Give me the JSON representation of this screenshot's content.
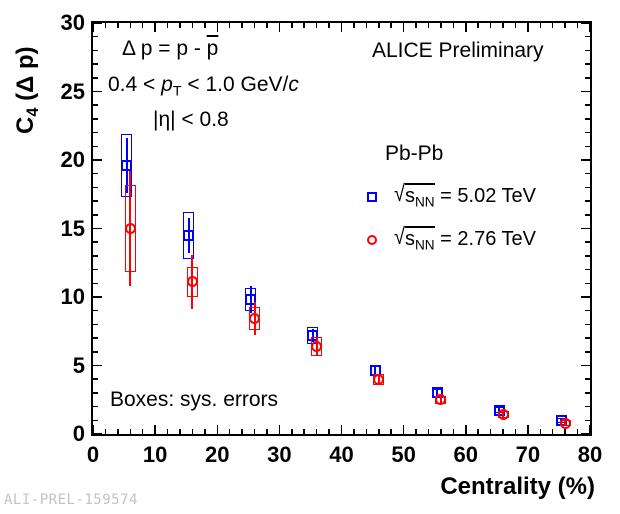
{
  "watermark": "ALI-PREL-159574",
  "annotations": {
    "alice": "ALICE Preliminary",
    "delta": {
      "pre": "Δ p = p - ",
      "pbar": "p"
    },
    "pt": {
      "a": "0.4 < ",
      "p": "p",
      "sub": "T",
      "b": " < 1.0 GeV/",
      "c": "c"
    },
    "eta": "|η| < 0.8",
    "boxes_note": "Boxes: sys. errors"
  },
  "axis_titles": {
    "y": {
      "c": "C",
      "sub": "4",
      "rest": " (Δ p)"
    }
  },
  "legend": {
    "system": "Pb-Pb",
    "entries": [
      {
        "marker": "square",
        "color": "#0000ff",
        "sqrt": "√",
        "s": "s",
        "sub": "NN",
        "rest": " = 5.02 TeV"
      },
      {
        "marker": "circle",
        "color": "#ff0000",
        "sqrt": "√",
        "s": "s",
        "sub": "NN",
        "rest": " = 2.76 TeV"
      }
    ]
  },
  "chart_data": {
    "type": "scatter",
    "title": "",
    "xlabel": "Centrality (%)",
    "ylabel": "C4 (Δp)",
    "xlim": [
      0,
      80
    ],
    "ylim": [
      0,
      30
    ],
    "x_major_ticks": [
      0,
      10,
      20,
      30,
      40,
      50,
      60,
      70,
      80
    ],
    "x_minor_step": 2,
    "y_major_ticks": [
      0,
      5,
      10,
      15,
      20,
      25,
      30
    ],
    "y_minor_step": 1,
    "grid": false,
    "legend_position": "upper right",
    "series": [
      {
        "name": "Pb-Pb sqrt(sNN) = 5.02 TeV",
        "marker": "square",
        "color": "#0000ff",
        "plot_x_offset": 0.4,
        "x": [
          5,
          15,
          25,
          35,
          45,
          55,
          65,
          75
        ],
        "y": [
          19.6,
          14.5,
          9.8,
          7.2,
          4.6,
          3.0,
          1.75,
          1.0
        ],
        "stat_err": [
          2.0,
          1.3,
          1.0,
          0.5,
          0.3,
          0.2,
          0.15,
          0.12
        ],
        "sys_err": [
          2.3,
          1.7,
          0.85,
          0.6,
          0.35,
          0.3,
          0.25,
          0.2
        ]
      },
      {
        "name": "Pb-Pb sqrt(sNN) = 2.76 TeV",
        "marker": "circle",
        "color": "#ff0000",
        "plot_x_offset": 1.0,
        "x": [
          5,
          15,
          25,
          35,
          45,
          55,
          65,
          75
        ],
        "y": [
          15.0,
          11.1,
          8.45,
          6.4,
          4.0,
          2.5,
          1.4,
          0.8
        ],
        "stat_err": [
          4.2,
          2.0,
          1.2,
          0.7,
          0.4,
          0.25,
          0.2,
          0.15
        ],
        "sys_err": [
          3.2,
          1.1,
          0.85,
          0.7,
          0.4,
          0.3,
          0.25,
          0.2
        ]
      }
    ]
  }
}
